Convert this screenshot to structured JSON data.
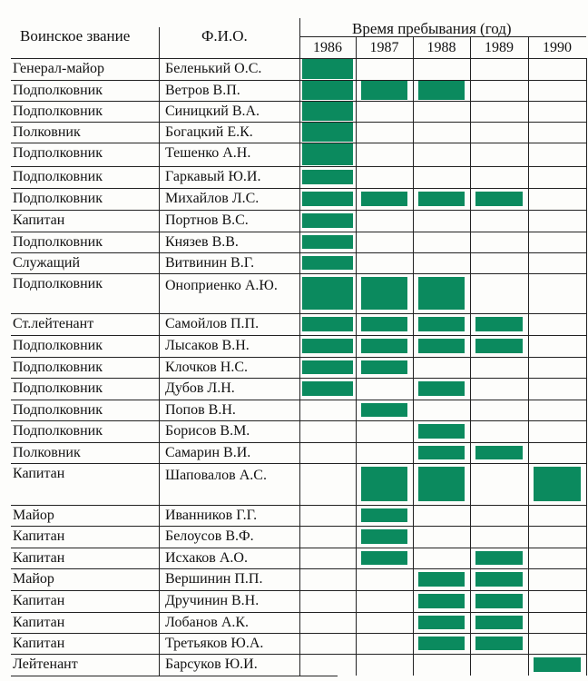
{
  "header": {
    "rank": "Воинское звание",
    "name": "Ф.И.О.",
    "period": "Время пребывания (год)",
    "years": [
      "1986",
      "1987",
      "1988",
      "1989",
      "1990"
    ]
  },
  "brand_color": "#0b8a5e",
  "rows": [
    {
      "rank": "Генерал-майор",
      "name": "Беленький О.С.",
      "years": [
        1986
      ]
    },
    {
      "rank": "Подполковник",
      "name": "Ветров В.П.",
      "years": [
        1986,
        1987,
        1988
      ]
    },
    {
      "rank": "Подполковник",
      "name": "Синицкий В.А.",
      "years": [
        1986
      ]
    },
    {
      "rank": "Полковник",
      "name": "Богацкий Е.К.",
      "years": [
        1986
      ]
    },
    {
      "rank": "Подполковник",
      "name": "Тешенко А.Н.",
      "years": [
        1986
      ]
    },
    {
      "rank": "Подполковник",
      "name": "Гаркавый Ю.И.",
      "years": [
        1986
      ]
    },
    {
      "rank": "Подполковник",
      "name": "Михайлов Л.С.",
      "years": [
        1986,
        1987,
        1988,
        1989
      ]
    },
    {
      "rank": "Капитан",
      "name": "Портнов В.С.",
      "years": [
        1986
      ]
    },
    {
      "rank": "Подполковник",
      "name": "Князев В.В.",
      "years": [
        1986
      ]
    },
    {
      "rank": "Служащий",
      "name": "Витвинин В.Г.",
      "years": [
        1986
      ]
    },
    {
      "rank": "Подполковник",
      "name": "Оноприенко А.Ю.",
      "years": [
        1986,
        1987,
        1988
      ]
    },
    {
      "rank": "Ст.лейтенант",
      "name": "Самойлов П.П.",
      "years": [
        1986,
        1987,
        1988,
        1989
      ]
    },
    {
      "rank": "Подполковник",
      "name": "Лысаков В.Н.",
      "years": [
        1986,
        1987,
        1988,
        1989
      ]
    },
    {
      "rank": "Подполковник",
      "name": "Клочков Н.С.",
      "years": [
        1986,
        1987
      ]
    },
    {
      "rank": "Подполковник",
      "name": "Дубов Л.Н.",
      "years": [
        1986,
        1988
      ]
    },
    {
      "rank": "Подполковник",
      "name": "Попов В.Н.",
      "years": [
        1987
      ]
    },
    {
      "rank": "Подполковник",
      "name": "Борисов В.М.",
      "years": [
        1988
      ]
    },
    {
      "rank": "Полковник",
      "name": "Самарин В.И.",
      "years": [
        1988,
        1989
      ]
    },
    {
      "rank": "Капитан",
      "name": "Шаповалов А.С.",
      "years": [
        1987,
        1988,
        1990
      ]
    },
    {
      "rank": "Майор",
      "name": "Иванников Г.Г.",
      "years": [
        1987
      ]
    },
    {
      "rank": "Капитан",
      "name": "Белоусов В.Ф.",
      "years": [
        1987
      ]
    },
    {
      "rank": "Капитан",
      "name": "Исхаков А.О.",
      "years": [
        1987,
        1989
      ]
    },
    {
      "rank": "Майор",
      "name": "Вершинин П.П.",
      "years": [
        1988,
        1989
      ]
    },
    {
      "rank": "Капитан",
      "name": "Дручинин В.Н.",
      "years": [
        1988,
        1989
      ]
    },
    {
      "rank": "Капитан",
      "name": "Лобанов А.К.",
      "years": [
        1988,
        1989
      ]
    },
    {
      "rank": "Капитан",
      "name": "Третьяков Ю.А.",
      "years": [
        1988,
        1989
      ]
    },
    {
      "rank": "Лейтенант",
      "name": "Барсуков Ю.И.",
      "years": [
        1990
      ]
    }
  ]
}
